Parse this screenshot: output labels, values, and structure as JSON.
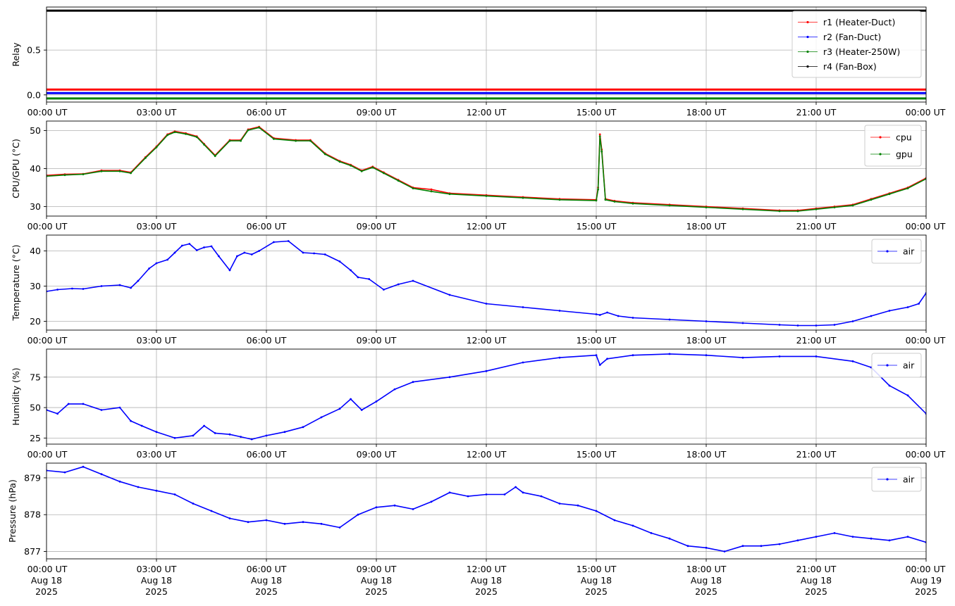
{
  "figure": {
    "x_tick_labels": [
      "00:00 UT",
      "03:00 UT",
      "06:00 UT",
      "09:00 UT",
      "12:00 UT",
      "15:00 UT",
      "18:00 UT",
      "21:00 UT",
      "00:00 UT"
    ],
    "x_date_labels": [
      "Aug 18",
      "Aug 18",
      "Aug 18",
      "Aug 18",
      "Aug 18",
      "Aug 18",
      "Aug 18",
      "Aug 18",
      "Aug 19"
    ],
    "x_year_labels": [
      "2025",
      "2025",
      "2025",
      "2025",
      "2025",
      "2025",
      "2025",
      "2025",
      "2025"
    ]
  },
  "chart_data": [
    {
      "type": "line",
      "ylabel": "Relay",
      "x_hours_range": [
        0,
        24
      ],
      "ylim": [
        -0.08,
        0.98
      ],
      "yticks": [
        0.0,
        0.5
      ],
      "ytick_labels": [
        "0.0",
        "0.5"
      ],
      "grid": true,
      "legend_position": "top-right",
      "series": [
        {
          "name": "r1 (Heater-Duct)",
          "color": "#ff0000",
          "x": [
            0,
            24
          ],
          "y": [
            0.06,
            0.06
          ]
        },
        {
          "name": "r2 (Fan-Duct)",
          "color": "#0000ff",
          "x": [
            0,
            24
          ],
          "y": [
            0.02,
            0.02
          ]
        },
        {
          "name": "r3 (Heater-250W)",
          "color": "#008000",
          "x": [
            0,
            24
          ],
          "y": [
            -0.04,
            -0.04
          ]
        },
        {
          "name": "r4 (Fan-Box)",
          "color": "#000000",
          "x": [
            0,
            24
          ],
          "y": [
            0.94,
            0.94
          ]
        }
      ]
    },
    {
      "type": "line",
      "ylabel": "CPU/GPU (°C)",
      "x_hours_range": [
        0,
        24
      ],
      "ylim": [
        27.5,
        52.5
      ],
      "yticks": [
        30,
        40,
        50
      ],
      "ytick_labels": [
        "30",
        "40",
        "50"
      ],
      "grid": true,
      "legend_position": "top-right",
      "series": [
        {
          "name": "cpu",
          "color": "#ff0000",
          "x": [
            0,
            0.5,
            1,
            1.5,
            2,
            2.3,
            2.7,
            3,
            3.3,
            3.5,
            3.8,
            4.1,
            4.3,
            4.6,
            5,
            5.3,
            5.5,
            5.8,
            6.2,
            6.8,
            7.2,
            7.6,
            8,
            8.3,
            8.6,
            8.9,
            9.2,
            9.6,
            10,
            10.5,
            11,
            12,
            13,
            14,
            15,
            15.05,
            15.1,
            15.15,
            15.25,
            15.5,
            16,
            17,
            18,
            19,
            20,
            20.5,
            21,
            21.5,
            22,
            22.5,
            23,
            23.5,
            24
          ],
          "y": [
            38.2,
            38.5,
            38.6,
            39.5,
            39.5,
            39.0,
            43.0,
            45.8,
            49.0,
            49.8,
            49.3,
            48.5,
            46.5,
            43.5,
            47.5,
            47.5,
            50.3,
            51.0,
            48.0,
            47.5,
            47.5,
            44.0,
            42.0,
            41.0,
            39.5,
            40.5,
            39.0,
            37.0,
            35.0,
            34.5,
            33.5,
            33.0,
            32.5,
            32.0,
            31.8,
            35.0,
            49.0,
            45.0,
            32.0,
            31.5,
            31.0,
            30.5,
            30.0,
            29.5,
            29.0,
            29.0,
            29.5,
            30.0,
            30.5,
            32.0,
            33.5,
            35.0,
            37.5
          ]
        },
        {
          "name": "gpu",
          "color": "#008000",
          "x": [
            0,
            0.5,
            1,
            1.5,
            2,
            2.3,
            2.7,
            3,
            3.3,
            3.5,
            3.8,
            4.1,
            4.3,
            4.6,
            5,
            5.3,
            5.5,
            5.8,
            6.2,
            6.8,
            7.2,
            7.6,
            8,
            8.3,
            8.6,
            8.9,
            9.2,
            9.6,
            10,
            10.5,
            11,
            12,
            13,
            14,
            15,
            15.05,
            15.1,
            15.15,
            15.25,
            15.5,
            16,
            17,
            18,
            19,
            20,
            20.5,
            21,
            21.5,
            22,
            22.5,
            23,
            23.5,
            24
          ],
          "y": [
            38.0,
            38.3,
            38.5,
            39.3,
            39.3,
            38.8,
            42.8,
            45.6,
            48.8,
            49.6,
            49.1,
            48.3,
            46.3,
            43.3,
            47.3,
            47.3,
            50.1,
            50.8,
            47.8,
            47.3,
            47.3,
            43.8,
            41.8,
            40.8,
            39.3,
            40.3,
            38.8,
            36.8,
            34.8,
            34.0,
            33.3,
            32.8,
            32.3,
            31.8,
            31.6,
            34.5,
            48.5,
            44.5,
            31.8,
            31.3,
            30.8,
            30.3,
            29.8,
            29.3,
            28.8,
            28.8,
            29.3,
            29.8,
            30.3,
            31.8,
            33.3,
            34.8,
            37.3
          ]
        }
      ]
    },
    {
      "type": "line",
      "ylabel": "Temperature (°C)",
      "x_hours_range": [
        0,
        24
      ],
      "ylim": [
        17.5,
        44.5
      ],
      "yticks": [
        20,
        30,
        40
      ],
      "ytick_labels": [
        "20",
        "30",
        "40"
      ],
      "grid": true,
      "legend_position": "top-right",
      "series": [
        {
          "name": "air",
          "color": "#0000ff",
          "x": [
            0,
            0.3,
            0.7,
            1,
            1.5,
            2,
            2.3,
            2.5,
            2.8,
            3,
            3.3,
            3.5,
            3.7,
            3.9,
            4.1,
            4.3,
            4.5,
            4.7,
            5,
            5.2,
            5.4,
            5.6,
            5.8,
            6.2,
            6.6,
            7,
            7.3,
            7.6,
            8,
            8.3,
            8.5,
            8.8,
            9.2,
            9.6,
            10,
            11,
            12,
            13,
            14,
            15,
            15.1,
            15.3,
            15.6,
            16,
            17,
            18,
            19,
            20,
            20.5,
            21,
            21.5,
            22,
            22.5,
            23,
            23.5,
            23.8,
            24
          ],
          "y": [
            28.5,
            29.0,
            29.3,
            29.2,
            30.0,
            30.3,
            29.5,
            31.5,
            35.0,
            36.5,
            37.5,
            39.5,
            41.5,
            42.0,
            40.2,
            41.0,
            41.3,
            38.5,
            34.5,
            38.5,
            39.5,
            39.0,
            40.0,
            42.5,
            42.8,
            39.5,
            39.3,
            39.0,
            37.0,
            34.5,
            32.5,
            32.0,
            29.0,
            30.5,
            31.5,
            27.5,
            25.0,
            24.0,
            23.0,
            22.0,
            21.8,
            22.5,
            21.5,
            21.0,
            20.5,
            20.0,
            19.5,
            19.0,
            18.8,
            18.8,
            19.0,
            20.0,
            21.5,
            23.0,
            24.0,
            25.0,
            28.0
          ]
        }
      ]
    },
    {
      "type": "line",
      "ylabel": "Humidity (%)",
      "x_hours_range": [
        0,
        24
      ],
      "ylim": [
        20,
        98
      ],
      "yticks": [
        25,
        50,
        75
      ],
      "ytick_labels": [
        "25",
        "50",
        "75"
      ],
      "grid": true,
      "legend_position": "top-right",
      "series": [
        {
          "name": "air",
          "color": "#0000ff",
          "x": [
            0,
            0.3,
            0.6,
            1,
            1.5,
            2,
            2.3,
            2.6,
            3,
            3.5,
            4,
            4.3,
            4.6,
            5,
            5.3,
            5.6,
            6,
            6.5,
            7,
            7.5,
            8,
            8.3,
            8.6,
            9,
            9.5,
            10,
            11,
            12,
            13,
            14,
            15,
            15.1,
            15.3,
            16,
            17,
            18,
            19,
            20,
            21,
            22,
            22.5,
            23,
            23.5,
            24
          ],
          "y": [
            48.0,
            45.0,
            53.0,
            53.0,
            48.0,
            50.0,
            39.0,
            35.0,
            30.0,
            25.0,
            27.0,
            35.0,
            29.0,
            28.0,
            26.0,
            24.0,
            27.0,
            30.0,
            34.0,
            42.0,
            49.0,
            57.0,
            48.0,
            55.0,
            65.0,
            71.0,
            75.0,
            80.0,
            87.0,
            91.0,
            93.0,
            85.0,
            90.0,
            93.0,
            94.0,
            93.0,
            91.0,
            92.0,
            92.0,
            88.0,
            83.0,
            68.0,
            60.0,
            45.0
          ]
        }
      ]
    },
    {
      "type": "line",
      "ylabel": "Pressure (hPa)",
      "x_hours_range": [
        0,
        24
      ],
      "ylim": [
        876.8,
        879.4
      ],
      "yticks": [
        877,
        878,
        879
      ],
      "ytick_labels": [
        "877",
        "878",
        "879"
      ],
      "grid": true,
      "legend_position": "top-right",
      "series": [
        {
          "name": "air",
          "color": "#0000ff",
          "x": [
            0,
            0.5,
            1,
            1.5,
            2,
            2.5,
            3,
            3.5,
            4,
            4.5,
            5,
            5.5,
            6,
            6.5,
            7,
            7.5,
            8,
            8.5,
            9,
            9.5,
            10,
            10.5,
            11,
            11.5,
            12,
            12.5,
            12.8,
            13,
            13.5,
            14,
            14.5,
            15,
            15.5,
            16,
            16.5,
            17,
            17.5,
            18,
            18.5,
            19,
            19.5,
            20,
            20.5,
            21,
            21.5,
            22,
            22.5,
            23,
            23.5,
            24
          ],
          "y": [
            879.2,
            879.15,
            879.3,
            879.1,
            878.9,
            878.75,
            878.65,
            878.55,
            878.3,
            878.1,
            877.9,
            877.8,
            877.85,
            877.75,
            877.8,
            877.75,
            877.65,
            878.0,
            878.2,
            878.25,
            878.15,
            878.35,
            878.6,
            878.5,
            878.55,
            878.55,
            878.75,
            878.6,
            878.5,
            878.3,
            878.25,
            878.1,
            877.85,
            877.7,
            877.5,
            877.35,
            877.15,
            877.1,
            877.0,
            877.15,
            877.15,
            877.2,
            877.3,
            877.4,
            877.5,
            877.4,
            877.35,
            877.3,
            877.4,
            877.25
          ]
        }
      ]
    }
  ]
}
